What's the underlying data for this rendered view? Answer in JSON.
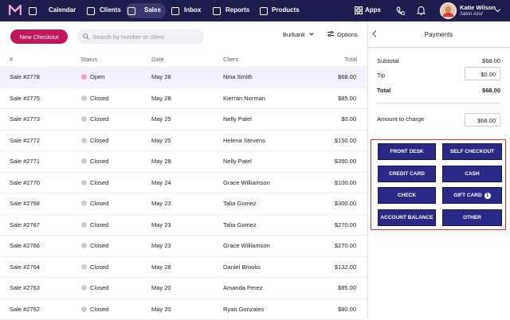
{
  "nav": {
    "items": [
      "Calendar",
      "Clients",
      "Sales",
      "Inbox",
      "Reports",
      "Products"
    ],
    "apps": "Apps",
    "user": {
      "name": "Katie Wilson",
      "org": "Salon Azul"
    }
  },
  "toolbar": {
    "new_checkout": "New Checkout",
    "search_placeholder": "Search by number or client",
    "location": "Burbank",
    "options": "Options"
  },
  "table": {
    "headers": [
      "#",
      "Status",
      "Date",
      "Client",
      "Total"
    ],
    "rows": [
      [
        "Sale #2778",
        "Open",
        "May 28",
        "Nina Smith",
        "$68.00"
      ],
      [
        "Sale #2775",
        "Closed",
        "May 28",
        "Kierran Norman",
        "$85.00"
      ],
      [
        "Sale #2773",
        "Closed",
        "May 25",
        "Nelly Patel",
        "$0.00"
      ],
      [
        "Sale #2772",
        "Closed",
        "May 25",
        "Helena Stevens",
        "$150.00"
      ],
      [
        "Sale #2771",
        "Closed",
        "May 28",
        "Nelly Patel",
        "$350.00"
      ],
      [
        "Sale #2770",
        "Closed",
        "May 24",
        "Grace Williamson",
        "$100.00"
      ],
      [
        "Sale #2768",
        "Closed",
        "May 23",
        "Talia Gomez",
        "$300.00"
      ],
      [
        "Sale #2767",
        "Closed",
        "May 23",
        "Talia Gomez",
        "$270.00"
      ],
      [
        "Sale #2766",
        "Closed",
        "May 23",
        "Grace Williamson",
        "$270.00"
      ],
      [
        "Sale #2764",
        "Closed",
        "May 28",
        "Daniel Brooks",
        "$132.00"
      ],
      [
        "Sale #2763",
        "Closed",
        "May 20",
        "Amanda Perez",
        "$85.00"
      ],
      [
        "Sale #2762",
        "Closed",
        "May 20",
        "Ryan Gonzales",
        "$80.00"
      ]
    ]
  },
  "payments": {
    "title": "Payments",
    "subtotal_label": "Subtotal",
    "subtotal": "$68.00",
    "tip_label": "Tip",
    "tip": "$0.00",
    "total_label": "Total",
    "total": "$68.00",
    "amount_label": "Amount to charge",
    "amount": "$68.00",
    "methods": [
      "FRONT DESK",
      "SELF CHECKOUT",
      "CREDIT CARD",
      "CASH",
      "CHECK",
      "GIFT CARD",
      "ACCOUNT BALANCE",
      "OTHER"
    ],
    "gift_card_badge": "1"
  }
}
